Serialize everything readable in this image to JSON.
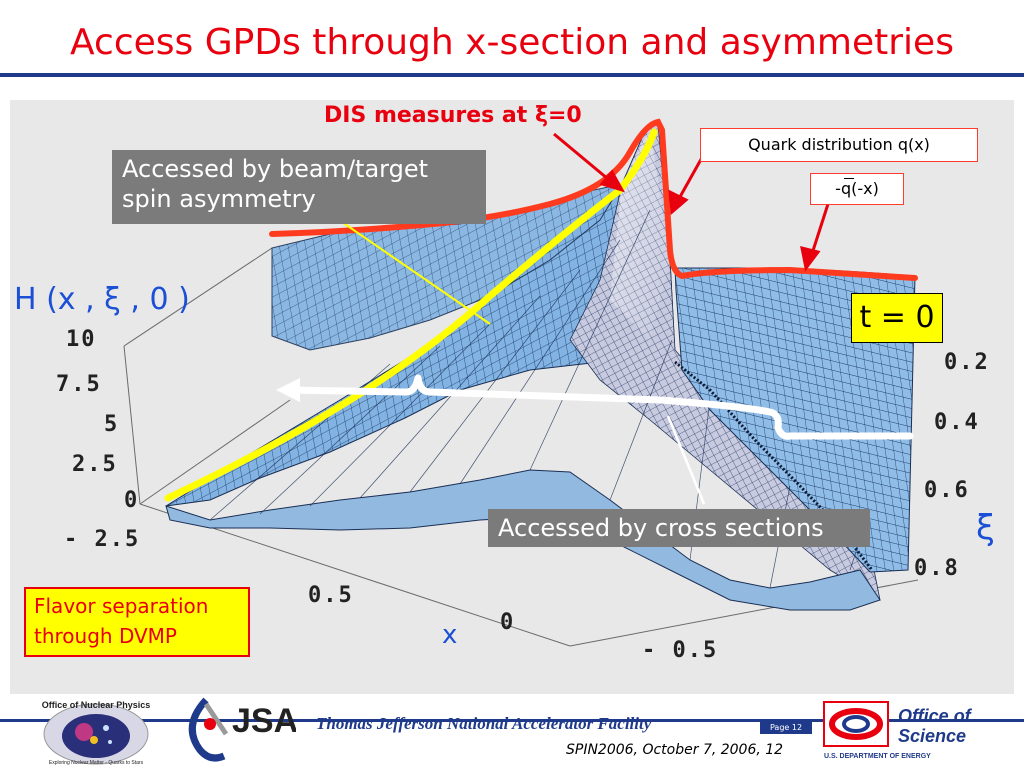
{
  "slide": {
    "title": "Access GPDs through x-section and asymmetries"
  },
  "annotations": {
    "dis_label": "DIS measures at ξ=0",
    "beam_target": "Accessed by beam/target spin asymmetry",
    "quark_dist": "Quark distribution q(x)",
    "antiquark_dist": "-q(-x)",
    "t_zero": "t = 0",
    "cross_sections": "Accessed by cross sections",
    "flavor_sep": "Flavor separation through DVMP"
  },
  "axes": {
    "z_title": "H (x , ξ , 0 )",
    "z_ticks": [
      "10",
      "7.5",
      "5",
      "2.5",
      "0",
      "- 2.5"
    ],
    "x_title": "x",
    "x_ticks": [
      "0.5",
      "0",
      "- 0.5"
    ],
    "xi_title": "ξ",
    "xi_ticks": [
      "0.2",
      "0.4",
      "0.6",
      "0.8"
    ]
  },
  "footer": {
    "facility": "Thomas Jefferson National Accelerator Facility",
    "conference": "SPIN2006, October 7, 2006, 12",
    "page_label": "Page 12",
    "onp_logo_text": "Office of Nuclear Physics",
    "onp_logo_tagline": "Exploring Nuclear Matter - Quarks to Stars",
    "jsa_logo_text": "JSA",
    "doe_line1": "Office of",
    "doe_line2": "Science",
    "doe_line3": "U.S. DEPARTMENT OF ENERGY"
  },
  "colors": {
    "title": "#e8000f",
    "rule": "#1f3a8a",
    "surface": "#7fb0e0",
    "highlight_yellow": "#ffff00",
    "highlight_red": "#ff3b1f",
    "axis_title_blue": "#1a4fd6"
  }
}
